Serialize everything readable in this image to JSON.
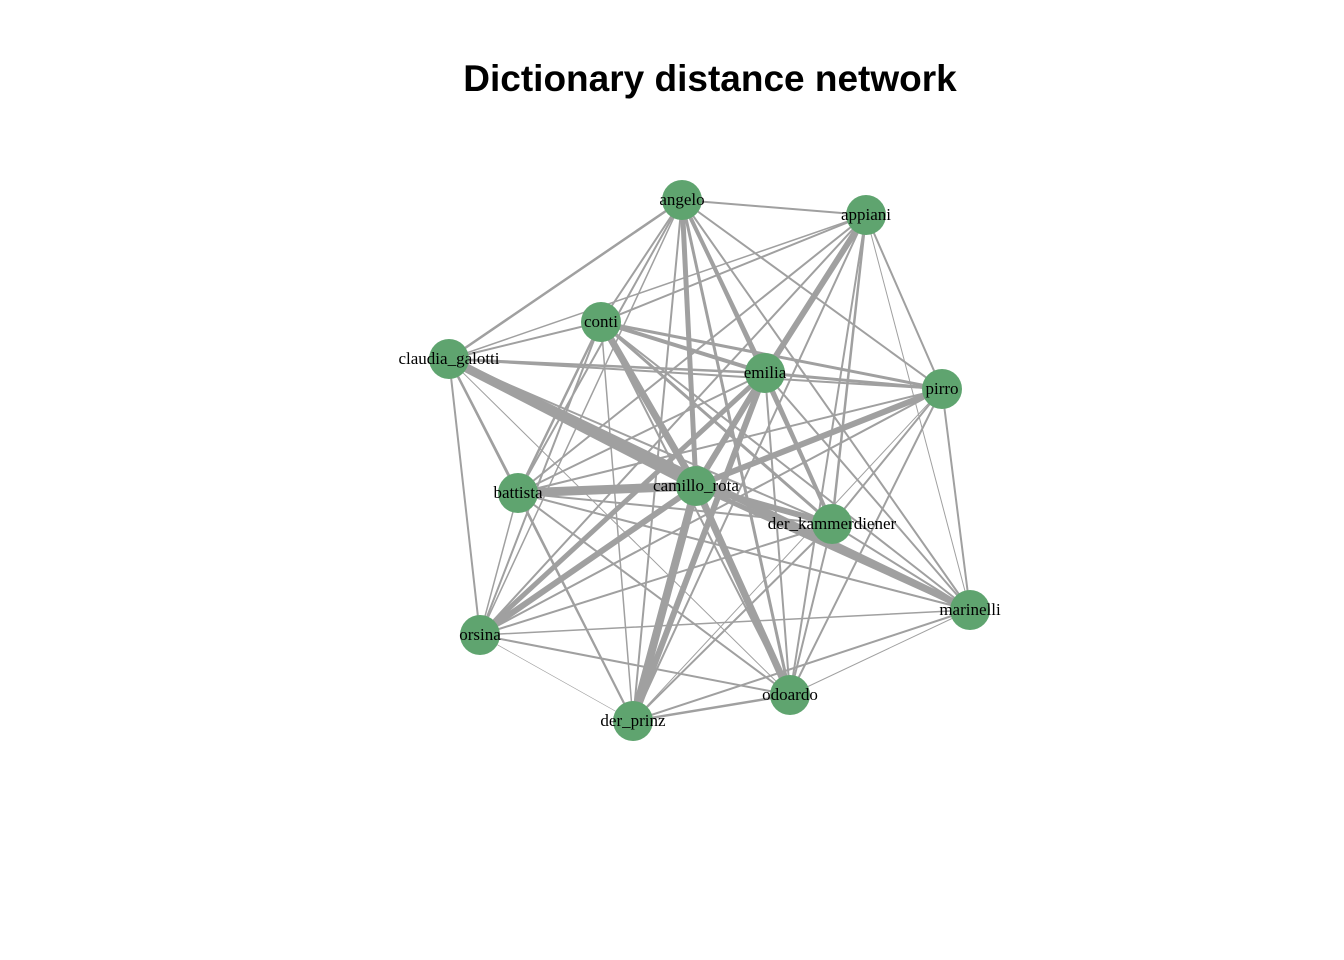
{
  "title": "Dictionary distance network",
  "colors": {
    "node": "#5fa46f",
    "edge": "#a0a0a0",
    "background": "#ffffff"
  },
  "nodes": [
    {
      "id": "angelo",
      "label": "angelo"
    },
    {
      "id": "appiani",
      "label": "appiani"
    },
    {
      "id": "conti",
      "label": "conti"
    },
    {
      "id": "claudia_galotti",
      "label": "claudia_galotti"
    },
    {
      "id": "emilia",
      "label": "emilia"
    },
    {
      "id": "pirro",
      "label": "pirro"
    },
    {
      "id": "battista",
      "label": "battista"
    },
    {
      "id": "camillo_rota",
      "label": "camillo_rota"
    },
    {
      "id": "der_kammerdiener",
      "label": "der_kammerdiener"
    },
    {
      "id": "marinelli",
      "label": "marinelli"
    },
    {
      "id": "orsina",
      "label": "orsina"
    },
    {
      "id": "odoardo",
      "label": "odoardo"
    },
    {
      "id": "der_prinz",
      "label": "der_prinz"
    }
  ],
  "edges": [
    [
      "angelo",
      "appiani",
      2
    ],
    [
      "angelo",
      "conti",
      2
    ],
    [
      "angelo",
      "claudia_galotti",
      2.5
    ],
    [
      "angelo",
      "emilia",
      4
    ],
    [
      "angelo",
      "pirro",
      2
    ],
    [
      "angelo",
      "battista",
      2
    ],
    [
      "angelo",
      "camillo_rota",
      5
    ],
    [
      "angelo",
      "der_kammerdiener",
      2
    ],
    [
      "angelo",
      "marinelli",
      2
    ],
    [
      "angelo",
      "orsina",
      1.5
    ],
    [
      "angelo",
      "odoardo",
      3
    ],
    [
      "angelo",
      "der_prinz",
      2
    ],
    [
      "appiani",
      "conti",
      2
    ],
    [
      "appiani",
      "claudia_galotti",
      1.5
    ],
    [
      "appiani",
      "emilia",
      6
    ],
    [
      "appiani",
      "pirro",
      2
    ],
    [
      "appiani",
      "battista",
      2
    ],
    [
      "appiani",
      "camillo_rota",
      2
    ],
    [
      "appiani",
      "der_kammerdiener",
      2.5
    ],
    [
      "appiani",
      "marinelli",
      1
    ],
    [
      "appiani",
      "orsina",
      2
    ],
    [
      "appiani",
      "odoardo",
      2
    ],
    [
      "appiani",
      "der_prinz",
      2
    ],
    [
      "conti",
      "claudia_galotti",
      2
    ],
    [
      "conti",
      "emilia",
      4
    ],
    [
      "conti",
      "pirro",
      3
    ],
    [
      "conti",
      "battista",
      2.5
    ],
    [
      "conti",
      "camillo_rota",
      7
    ],
    [
      "conti",
      "der_kammerdiener",
      3
    ],
    [
      "conti",
      "marinelli",
      2
    ],
    [
      "conti",
      "orsina",
      2
    ],
    [
      "conti",
      "odoardo",
      2
    ],
    [
      "conti",
      "der_prinz",
      1.5
    ],
    [
      "claudia_galotti",
      "emilia",
      2.5
    ],
    [
      "claudia_galotti",
      "pirro",
      2
    ],
    [
      "claudia_galotti",
      "battista",
      2.5
    ],
    [
      "claudia_galotti",
      "camillo_rota",
      9
    ],
    [
      "claudia_galotti",
      "der_kammerdiener",
      2
    ],
    [
      "claudia_galotti",
      "marinelli",
      7
    ],
    [
      "claudia_galotti",
      "orsina",
      2
    ],
    [
      "claudia_galotti",
      "odoardo",
      1
    ],
    [
      "claudia_galotti",
      "der_prinz",
      2
    ],
    [
      "emilia",
      "pirro",
      3
    ],
    [
      "emilia",
      "battista",
      2
    ],
    [
      "emilia",
      "camillo_rota",
      6
    ],
    [
      "emilia",
      "der_kammerdiener",
      4
    ],
    [
      "emilia",
      "marinelli",
      2
    ],
    [
      "emilia",
      "orsina",
      5
    ],
    [
      "emilia",
      "odoardo",
      2
    ],
    [
      "emilia",
      "der_prinz",
      6
    ],
    [
      "pirro",
      "battista",
      2
    ],
    [
      "pirro",
      "camillo_rota",
      6
    ],
    [
      "pirro",
      "der_kammerdiener",
      2
    ],
    [
      "pirro",
      "marinelli",
      2
    ],
    [
      "pirro",
      "orsina",
      2
    ],
    [
      "pirro",
      "odoardo",
      2
    ],
    [
      "pirro",
      "der_prinz",
      1
    ],
    [
      "battista",
      "camillo_rota",
      9
    ],
    [
      "battista",
      "der_kammerdiener",
      2
    ],
    [
      "battista",
      "marinelli",
      2
    ],
    [
      "battista",
      "orsina",
      1.5
    ],
    [
      "battista",
      "odoardo",
      2
    ],
    [
      "battista",
      "der_prinz",
      2
    ],
    [
      "camillo_rota",
      "der_kammerdiener",
      6
    ],
    [
      "camillo_rota",
      "marinelli",
      5
    ],
    [
      "camillo_rota",
      "orsina",
      6
    ],
    [
      "camillo_rota",
      "odoardo",
      7
    ],
    [
      "camillo_rota",
      "der_prinz",
      8
    ],
    [
      "der_kammerdiener",
      "marinelli",
      2
    ],
    [
      "der_kammerdiener",
      "orsina",
      2
    ],
    [
      "der_kammerdiener",
      "odoardo",
      2
    ],
    [
      "der_kammerdiener",
      "der_prinz",
      2
    ],
    [
      "marinelli",
      "orsina",
      1.5
    ],
    [
      "marinelli",
      "odoardo",
      1
    ],
    [
      "marinelli",
      "der_prinz",
      2
    ],
    [
      "orsina",
      "odoardo",
      2
    ],
    [
      "orsina",
      "der_prinz",
      0.7
    ],
    [
      "odoardo",
      "der_prinz",
      2.5
    ]
  ]
}
